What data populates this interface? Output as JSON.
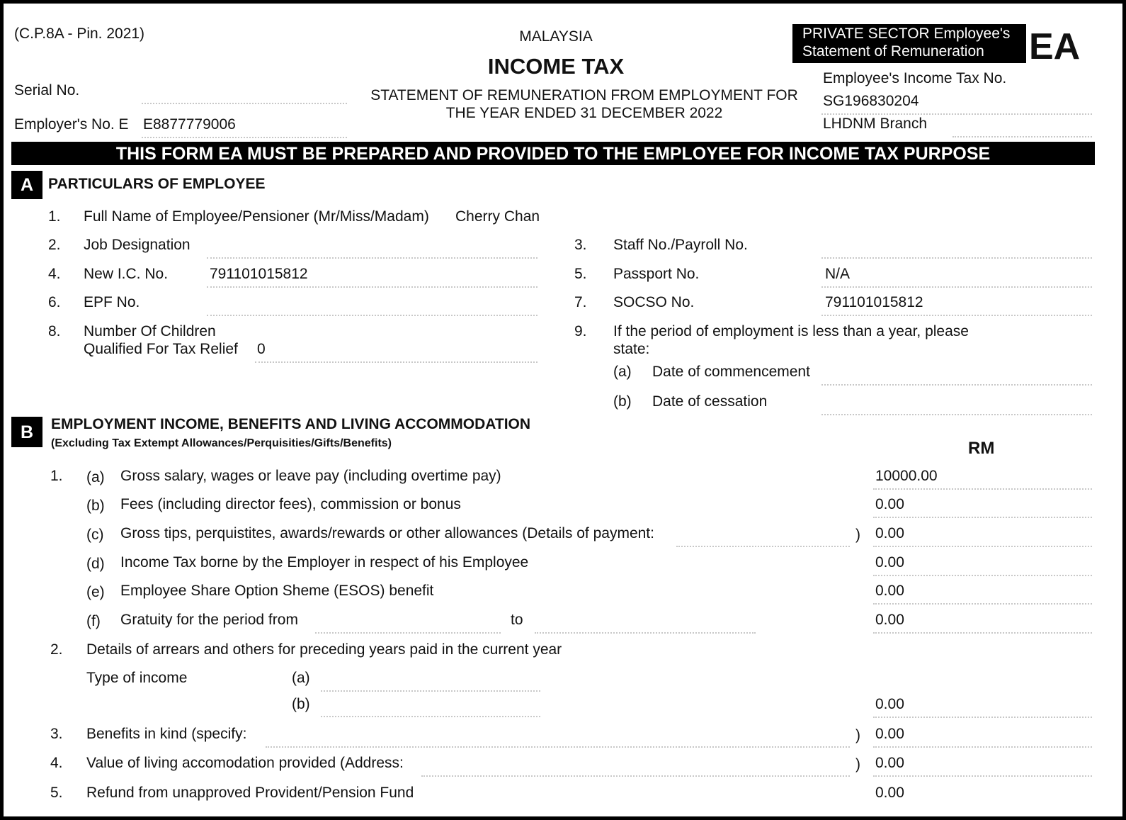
{
  "header": {
    "form_code": "(C.P.8A - Pin. 2021)",
    "country": "MALAYSIA",
    "title": "INCOME TAX",
    "statement_line1": "STATEMENT OF REMUNERATION FROM EMPLOYMENT FOR",
    "statement_line2": "THE YEAR ENDED 31 DECEMBER 2022",
    "sector_line1": "PRIVATE SECTOR Employee's",
    "sector_line2": "Statement of Remuneration",
    "form_type": "EA",
    "serial_label": "Serial No.",
    "serial_value": "",
    "employer_label": "Employer's No. E",
    "employer_value": "E8877779006",
    "tax_no_label": "Employee's Income Tax No.",
    "tax_no_value": "SG196830204",
    "branch_label": "LHDNM Branch",
    "branch_value": ""
  },
  "banner": "THIS FORM EA MUST BE PREPARED AND PROVIDED TO THE EMPLOYEE FOR INCOME TAX PURPOSE",
  "section_a": {
    "letter": "A",
    "title": "PARTICULARS OF EMPLOYEE",
    "items": {
      "n1": "1.",
      "l1": "Full Name of Employee/Pensioner (Mr/Miss/Madam)",
      "v1": "Cherry Chan",
      "n2": "2.",
      "l2": "Job Designation",
      "v2": "",
      "n3": "3.",
      "l3": "Staff No./Payroll No.",
      "v3": "",
      "n4": "4.",
      "l4": "New I.C. No.",
      "v4": "791101015812",
      "n5": "5.",
      "l5": "Passport No.",
      "v5": "N/A",
      "n6": "6.",
      "l6": "EPF No.",
      "v6": "",
      "n7": "7.",
      "l7": "SOCSO No.",
      "v7": "791101015812",
      "n8": "8.",
      "l8a": "Number Of Children",
      "l8b": "Qualified For Tax Relief",
      "v8": "0",
      "n9": "9.",
      "l9a": "If the period of employment is less than a year, please",
      "l9b": "state:",
      "a": "(a)",
      "l9_commence": "Date of commencement",
      "b": "(b)",
      "l9_cessation": "Date of cessation"
    }
  },
  "section_b": {
    "letter": "B",
    "title": "EMPLOYMENT INCOME, BENEFITS AND LIVING ACCOMMODATION",
    "subtitle": "(Excluding Tax Extempt Allowances/Perquisities/Gifts/Benefits)",
    "currency": "RM",
    "rows": [
      {
        "num": "1.",
        "sub": "(a)",
        "label": "Gross salary, wages or leave pay (including overtime pay)",
        "value": "10000.00"
      },
      {
        "num": "",
        "sub": "(b)",
        "label": "Fees (including director fees), commission or bonus",
        "value": "0.00"
      },
      {
        "num": "",
        "sub": "(c)",
        "label": "Gross tips, perquistites, awards/rewards or other allowances (Details of payment:",
        "close": ")",
        "value": "0.00"
      },
      {
        "num": "",
        "sub": "(d)",
        "label": "Income Tax borne by the Employer in respect of his Employee",
        "value": "0.00"
      },
      {
        "num": "",
        "sub": "(e)",
        "label": "Employee Share Option Sheme (ESOS) benefit",
        "value": "0.00"
      },
      {
        "num": "",
        "sub": "(f)",
        "label": "Gratuity for the period from",
        "to": "to",
        "value": "0.00"
      }
    ],
    "arrears": {
      "num": "2.",
      "label": "Details of arrears and others for preceding years paid in the current year",
      "type_label": "Type of income",
      "a": "(a)",
      "b": "(b)",
      "value": "0.00"
    },
    "benefits": {
      "num": "3.",
      "label": "Benefits in kind (specify:",
      "close": ")",
      "value": "0.00"
    },
    "living": {
      "num": "4.",
      "label": "Value of living accomodation provided (Address:",
      "close": ")",
      "value": "0.00"
    },
    "refund": {
      "num": "5.",
      "label": "Refund from unapproved Provident/Pension Fund",
      "value": "0.00"
    }
  }
}
